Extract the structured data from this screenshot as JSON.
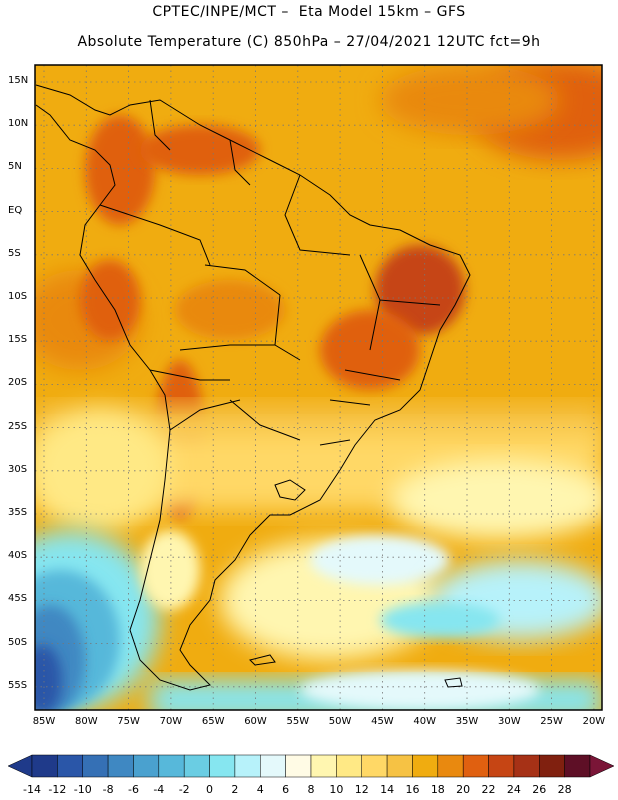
{
  "header": {
    "line1": "CPTEC/INPE/MCT –  Eta Model 15km – GFS",
    "line2": "Absolute Temperature (C) 850hPa – 27/04/2021 12UTC fct=9h"
  },
  "map": {
    "region": "South America",
    "lat_labels": [
      "15N",
      "10N",
      "5N",
      "EQ",
      "5S",
      "10S",
      "15S",
      "20S",
      "25S",
      "30S",
      "35S",
      "40S",
      "45S",
      "50S",
      "55S"
    ],
    "lon_labels": [
      "85W",
      "80W",
      "75W",
      "70W",
      "65W",
      "60W",
      "55W",
      "50W",
      "45W",
      "40W",
      "35W",
      "30W",
      "25W",
      "20W"
    ]
  },
  "colorbar": {
    "labels": [
      "-14",
      "-12",
      "-10",
      "-8",
      "-6",
      "-4",
      "-2",
      "0",
      "2",
      "4",
      "6",
      "8",
      "10",
      "12",
      "14",
      "16",
      "18",
      "20",
      "22",
      "24",
      "26",
      "28"
    ],
    "colors": [
      "#1f3a8a",
      "#2a56a8",
      "#3570b5",
      "#3f88c2",
      "#4aa1cf",
      "#57b8da",
      "#6acde3",
      "#86e6f0",
      "#b7f2fa",
      "#e4f9fb",
      "#fffbe5",
      "#fff6b0",
      "#ffe985",
      "#ffd866",
      "#f6c244",
      "#f0ac10",
      "#e9890f",
      "#e06010",
      "#c64514",
      "#a63116",
      "#80200f",
      "#5e0f26"
    ],
    "left_arrow_color": "#1f3a8a",
    "right_arrow_color": "#7a1537"
  }
}
